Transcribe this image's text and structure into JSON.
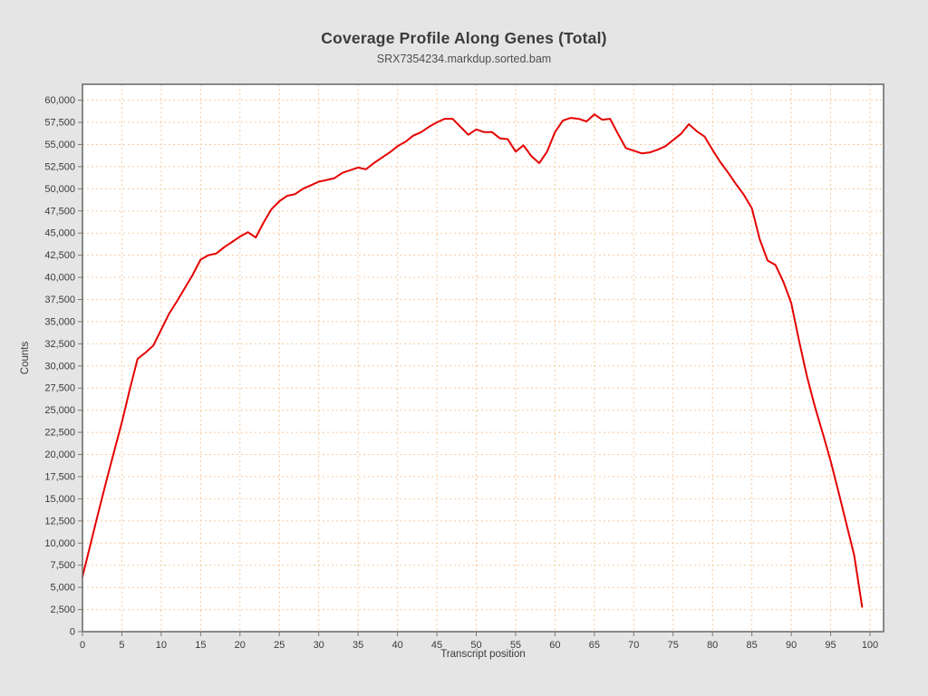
{
  "header": {
    "title": "Coverage Profile Along Genes (Total)",
    "subtitle": "SRX7354234.markdup.sorted.bam"
  },
  "chart_data": {
    "type": "line",
    "title": "Coverage Profile Along Genes (Total)",
    "subtitle": "SRX7354234.markdup.sorted.bam",
    "xlabel": "Transcript position",
    "ylabel": "Counts",
    "xlim": [
      0,
      101.7
    ],
    "ylim": [
      0,
      61800
    ],
    "x_ticks": [
      0,
      5,
      10,
      15,
      20,
      25,
      30,
      35,
      40,
      45,
      50,
      55,
      60,
      65,
      70,
      75,
      80,
      85,
      90,
      95,
      100
    ],
    "y_ticks": [
      0,
      2500,
      5000,
      7500,
      10000,
      12500,
      15000,
      17500,
      20000,
      22500,
      25000,
      27500,
      30000,
      32500,
      35000,
      37500,
      40000,
      42500,
      45000,
      47500,
      50000,
      52500,
      55000,
      57500,
      60000
    ],
    "grid": true,
    "legend_position": "none",
    "series": [
      {
        "name": "SRX7354234.markdup.sorted.bam",
        "x": [
          0,
          1,
          2,
          3,
          4,
          5,
          6,
          7,
          8,
          9,
          10,
          11,
          12,
          13,
          14,
          15,
          16,
          17,
          18,
          19,
          20,
          21,
          22,
          23,
          24,
          25,
          26,
          27,
          28,
          29,
          30,
          31,
          32,
          33,
          34,
          35,
          36,
          37,
          38,
          39,
          40,
          41,
          42,
          43,
          44,
          45,
          46,
          47,
          48,
          49,
          50,
          51,
          52,
          53,
          54,
          55,
          56,
          57,
          58,
          59,
          60,
          61,
          62,
          63,
          64,
          65,
          66,
          67,
          68,
          69,
          70,
          71,
          72,
          73,
          74,
          75,
          76,
          77,
          78,
          79,
          80,
          81,
          82,
          83,
          84,
          85,
          86,
          87,
          88,
          89,
          90,
          91,
          92,
          93,
          94,
          95,
          96,
          97,
          98,
          99
        ],
        "values": [
          6200,
          9800,
          13400,
          16900,
          20300,
          23600,
          27300,
          30800,
          31500,
          32300,
          34100,
          35900,
          37300,
          38800,
          40300,
          42000,
          42500,
          42700,
          43400,
          44000,
          44600,
          45100,
          44500,
          46200,
          47700,
          48600,
          49200,
          49400,
          50000,
          50400,
          50800,
          51000,
          51200,
          51800,
          52100,
          52400,
          52200,
          52900,
          53500,
          54100,
          54800,
          55300,
          56000,
          56400,
          57000,
          57500,
          57900,
          57900,
          57000,
          56100,
          56700,
          56400,
          56400,
          55700,
          55600,
          54200,
          54900,
          53700,
          52900,
          54200,
          56400,
          57700,
          58000,
          57900,
          57600,
          58400,
          57800,
          57900,
          56200,
          54600,
          54300,
          54000,
          54100,
          54400,
          54800,
          55500,
          56200,
          57300,
          56500,
          55900,
          54400,
          53000,
          51800,
          50500,
          49300,
          47800,
          44300,
          41900,
          41400,
          39500,
          37100,
          32800,
          28800,
          25400,
          22400,
          19300,
          15800,
          12200,
          8600,
          2800
        ]
      }
    ]
  },
  "colors": {
    "page_background": "#e5e5e5",
    "plot_background": "#ffffff",
    "plot_border": "#6e6e6e",
    "grid": "#f7c9a0",
    "tick": "#777777",
    "tick_label": "#3a3a3a",
    "line": "#e60000",
    "title": "#3b3b3b",
    "subtitle": "#4f4f4f"
  }
}
